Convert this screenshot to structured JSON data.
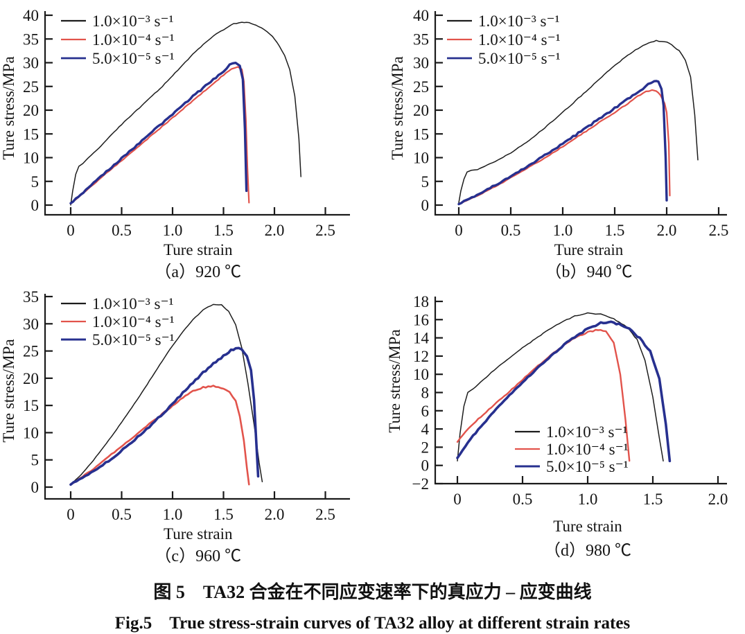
{
  "figure": {
    "caption_zh": "图 5　TA32 合金在不同应变速率下的真应力 – 应变曲线",
    "caption_en": "Fig.5　True stress-strain curves of TA32 alloy at different strain rates"
  },
  "colors": {
    "black": "#1c1c1c",
    "red": "#e2534b",
    "blue": "#27308f",
    "axis": "#1a1a1a"
  },
  "chart_data": [
    {
      "type": "line",
      "panel": "a",
      "caption": "（a）920 ℃",
      "xlabel": "Ture strain",
      "ylabel": "Ture stress/MPa",
      "xlim": [
        0,
        2.5
      ],
      "ylim": [
        0,
        40
      ],
      "xtick_labels": [
        "0",
        "0.5",
        "1.0",
        "1.5",
        "2.0",
        "2.5"
      ],
      "xticks": [
        0,
        0.5,
        1.0,
        1.5,
        2.0,
        2.5
      ],
      "ytick_labels": [
        "0",
        "5",
        "10",
        "15",
        "20",
        "25",
        "30",
        "35",
        "40"
      ],
      "yticks": [
        0,
        5,
        10,
        15,
        20,
        25,
        30,
        35,
        40
      ],
      "legend_pos": "top-left",
      "grid": false,
      "series": [
        {
          "name": "1.0×10⁻³ s⁻¹",
          "color": "#1c1c1c",
          "width": 1.5,
          "noise": 0.7,
          "x": [
            0,
            0.02,
            0.05,
            0.08,
            0.12,
            0.2,
            0.3,
            0.4,
            0.5,
            0.6,
            0.7,
            0.8,
            0.9,
            1.0,
            1.1,
            1.2,
            1.3,
            1.4,
            1.5,
            1.6,
            1.68,
            1.75,
            1.82,
            1.9,
            1.98,
            2.05,
            2.1,
            2.15,
            2.2,
            2.24,
            2.26
          ],
          "y": [
            0,
            3,
            6.5,
            8.2,
            8.8,
            10.5,
            12.5,
            14.8,
            17,
            19,
            21,
            23,
            25,
            27.3,
            29.5,
            31.8,
            33.8,
            35.6,
            37,
            38.2,
            38.6,
            38.4,
            38,
            37,
            35.5,
            33.5,
            31.5,
            28.5,
            23,
            14,
            6
          ]
        },
        {
          "name": "1.0×10⁻⁴ s⁻¹",
          "color": "#e2534b",
          "width": 2.2,
          "noise": 0.8,
          "x": [
            0,
            0.15,
            0.3,
            0.45,
            0.6,
            0.75,
            0.9,
            1.05,
            1.2,
            1.35,
            1.5,
            1.58,
            1.64,
            1.68,
            1.7,
            1.72,
            1.735,
            1.75
          ],
          "y": [
            0.3,
            3,
            5.8,
            8.5,
            11.2,
            13.9,
            16.6,
            19.3,
            22,
            24.7,
            27.4,
            28.8,
            29.2,
            28.6,
            26,
            18,
            8,
            0.5
          ]
        },
        {
          "name": "5.0×10⁻⁵ s⁻¹",
          "color": "#27308f",
          "width": 3.4,
          "noise": 1.5,
          "x": [
            0,
            0.15,
            0.3,
            0.45,
            0.6,
            0.75,
            0.9,
            1.05,
            1.2,
            1.35,
            1.5,
            1.56,
            1.62,
            1.66,
            1.69,
            1.71,
            1.725
          ],
          "y": [
            0.3,
            3.2,
            6.1,
            8.9,
            11.7,
            14.5,
            17.3,
            20.1,
            22.9,
            25.6,
            28.3,
            29.5,
            30,
            29.3,
            26.5,
            16,
            3
          ]
        }
      ]
    },
    {
      "type": "line",
      "panel": "b",
      "caption": "（b）940 ℃",
      "xlabel": "Ture strain",
      "ylabel": "Ture stress/MPa",
      "xlim": [
        0,
        2.5
      ],
      "ylim": [
        0,
        40
      ],
      "xtick_labels": [
        "0",
        "0.5",
        "1.0",
        "1.5",
        "2.0",
        "2.5"
      ],
      "xticks": [
        0,
        0.5,
        1.0,
        1.5,
        2.0,
        2.5
      ],
      "ytick_labels": [
        "0",
        "5",
        "10",
        "15",
        "20",
        "25",
        "30",
        "35",
        "40"
      ],
      "yticks": [
        0,
        5,
        10,
        15,
        20,
        25,
        30,
        35,
        40
      ],
      "legend_pos": "top-left",
      "grid": false,
      "series": [
        {
          "name": "1.0×10⁻³ s⁻¹",
          "color": "#1c1c1c",
          "width": 1.5,
          "noise": 0.7,
          "x": [
            0,
            0.02,
            0.05,
            0.08,
            0.12,
            0.18,
            0.25,
            0.35,
            0.5,
            0.65,
            0.8,
            0.95,
            1.1,
            1.25,
            1.4,
            1.55,
            1.7,
            1.8,
            1.9,
            1.98,
            2.05,
            2.12,
            2.18,
            2.23,
            2.27,
            2.3
          ],
          "y": [
            0.5,
            3,
            5.5,
            7,
            7.3,
            7.5,
            8.2,
            9.2,
            11,
            13.2,
            15.8,
            18.6,
            21.5,
            24.5,
            27.5,
            30.3,
            32.7,
            33.9,
            34.6,
            34.5,
            33.8,
            32.5,
            30.5,
            27,
            19,
            9.5
          ]
        },
        {
          "name": "1.0×10⁻⁴ s⁻¹",
          "color": "#e2534b",
          "width": 2.2,
          "noise": 0.8,
          "x": [
            0,
            0.2,
            0.4,
            0.6,
            0.8,
            1.0,
            1.2,
            1.4,
            1.6,
            1.72,
            1.8,
            1.86,
            1.9,
            1.94,
            1.98,
            2.0,
            2.02,
            2.03
          ],
          "y": [
            0.2,
            2.2,
            4.5,
            7.0,
            9.6,
            12.3,
            15.2,
            18.1,
            21.0,
            22.9,
            23.9,
            24.2,
            24.0,
            23.2,
            21.5,
            19.5,
            13,
            2
          ]
        },
        {
          "name": "5.0×10⁻⁵ s⁻¹",
          "color": "#27308f",
          "width": 3.4,
          "noise": 1.5,
          "x": [
            0,
            0.2,
            0.4,
            0.6,
            0.8,
            1.0,
            1.2,
            1.4,
            1.6,
            1.72,
            1.82,
            1.88,
            1.92,
            1.95,
            1.97,
            1.99,
            2.0
          ],
          "y": [
            0.3,
            2.4,
            4.8,
            7.4,
            10.1,
            12.9,
            15.9,
            18.9,
            21.9,
            23.9,
            25.3,
            26.1,
            25.9,
            24.5,
            21,
            10,
            1
          ]
        }
      ]
    },
    {
      "type": "line",
      "panel": "c",
      "caption": "（c）960 ℃",
      "xlabel": "Ture strain",
      "ylabel": "Ture stress/MPa",
      "xlim": [
        0,
        2.5
      ],
      "ylim": [
        0,
        35
      ],
      "xtick_labels": [
        "0",
        "0.5",
        "1.0",
        "1.5",
        "2.0",
        "2.5"
      ],
      "xticks": [
        0,
        0.5,
        1.0,
        1.5,
        2.0,
        2.5
      ],
      "ytick_labels": [
        "0",
        "5",
        "10",
        "15",
        "20",
        "25",
        "30",
        "35"
      ],
      "yticks": [
        0,
        5,
        10,
        15,
        20,
        25,
        30,
        35
      ],
      "legend_pos": "top-left",
      "grid": false,
      "series": [
        {
          "name": "1.0×10⁻³ s⁻¹",
          "color": "#1c1c1c",
          "width": 1.5,
          "noise": 0.7,
          "x": [
            0,
            0.1,
            0.2,
            0.3,
            0.4,
            0.5,
            0.6,
            0.7,
            0.8,
            0.9,
            1.0,
            1.1,
            1.2,
            1.3,
            1.4,
            1.48,
            1.55,
            1.62,
            1.68,
            1.74,
            1.8,
            1.85,
            1.88
          ],
          "y": [
            0.5,
            2.2,
            4.4,
            6.8,
            9.3,
            11.9,
            14.6,
            17.4,
            20.3,
            23.2,
            26,
            28.5,
            30.8,
            32.5,
            33.6,
            33.5,
            32.3,
            29.8,
            25.5,
            19,
            11.5,
            4.5,
            1
          ]
        },
        {
          "name": "1.0×10⁻⁴ s⁻¹",
          "color": "#e2534b",
          "width": 2.6,
          "noise": 1.2,
          "x": [
            0,
            0.2,
            0.4,
            0.6,
            0.8,
            0.95,
            1.1,
            1.2,
            1.3,
            1.4,
            1.5,
            1.56,
            1.62,
            1.66,
            1.7,
            1.73,
            1.75
          ],
          "y": [
            0.5,
            3,
            6,
            9,
            12,
            14.2,
            16.4,
            17.6,
            18.3,
            18.6,
            18.2,
            17.4,
            15.8,
            13,
            8.5,
            3.5,
            0.5
          ]
        },
        {
          "name": "5.0×10⁻⁵ s⁻¹",
          "color": "#27308f",
          "width": 3.6,
          "noise": 1.6,
          "x": [
            0,
            0.2,
            0.4,
            0.6,
            0.8,
            1.0,
            1.15,
            1.3,
            1.45,
            1.55,
            1.62,
            1.68,
            1.73,
            1.77,
            1.8,
            1.82,
            1.84
          ],
          "y": [
            0.5,
            2.6,
            5.2,
            8.2,
            11.6,
            15.3,
            18.3,
            21,
            23.4,
            24.8,
            25.6,
            25.3,
            24,
            21.5,
            16,
            9,
            2
          ]
        }
      ]
    },
    {
      "type": "line",
      "panel": "d",
      "caption": "（d）980 ℃",
      "xlabel": "Ture strain",
      "ylabel": "Ture stress/MPa",
      "xlim": [
        0,
        2.0
      ],
      "ylim": [
        -2,
        18
      ],
      "xtick_labels": [
        "0",
        "0.5",
        "1.0",
        "1.5",
        "2.0"
      ],
      "xticks": [
        0,
        0.5,
        1.0,
        1.5,
        2.0
      ],
      "ytick_labels": [
        "−2",
        "0",
        "2",
        "4",
        "6",
        "8",
        "10",
        "12",
        "14",
        "16",
        "18"
      ],
      "yticks": [
        -2,
        0,
        2,
        4,
        6,
        8,
        10,
        12,
        14,
        16,
        18
      ],
      "legend_pos": "bottom-center",
      "grid": false,
      "series": [
        {
          "name": "1.0×10⁻³ s⁻¹",
          "color": "#1c1c1c",
          "width": 1.5,
          "noise": 0.7,
          "x": [
            0,
            0.02,
            0.05,
            0.08,
            0.12,
            0.2,
            0.3,
            0.4,
            0.5,
            0.6,
            0.7,
            0.8,
            0.9,
            1.0,
            1.1,
            1.2,
            1.3,
            1.38,
            1.44,
            1.5,
            1.55,
            1.58
          ],
          "y": [
            0.5,
            3.5,
            6.5,
            8,
            8.4,
            9.4,
            10.7,
            11.8,
            12.9,
            13.9,
            14.9,
            15.7,
            16.4,
            16.7,
            16.6,
            16.1,
            15.2,
            13.8,
            11.5,
            7.5,
            3,
            0.5
          ]
        },
        {
          "name": "1.0×10⁻⁴ s⁻¹",
          "color": "#e2534b",
          "width": 2.4,
          "noise": 1.0,
          "x": [
            0,
            0.1,
            0.2,
            0.3,
            0.4,
            0.5,
            0.6,
            0.7,
            0.8,
            0.9,
            1.0,
            1.08,
            1.14,
            1.2,
            1.25,
            1.29,
            1.32
          ],
          "y": [
            2.6,
            4.3,
            5.6,
            6.9,
            8.1,
            9.4,
            10.7,
            11.9,
            13,
            14,
            14.6,
            14.9,
            14.7,
            13.5,
            10,
            5,
            0.5
          ]
        },
        {
          "name": "5.0×10⁻⁵ s⁻¹",
          "color": "#27308f",
          "width": 3.6,
          "noise": 1.6,
          "x": [
            0,
            0.1,
            0.2,
            0.3,
            0.4,
            0.5,
            0.6,
            0.7,
            0.8,
            0.9,
            1.0,
            1.1,
            1.2,
            1.3,
            1.4,
            1.48,
            1.55,
            1.6,
            1.63
          ],
          "y": [
            0.8,
            2.9,
            4.6,
            6.2,
            7.7,
            9.1,
            10.5,
            11.8,
            13,
            14.1,
            15,
            15.6,
            15.7,
            15.2,
            14,
            12.5,
            9.5,
            4.5,
            0.5
          ]
        }
      ]
    }
  ]
}
